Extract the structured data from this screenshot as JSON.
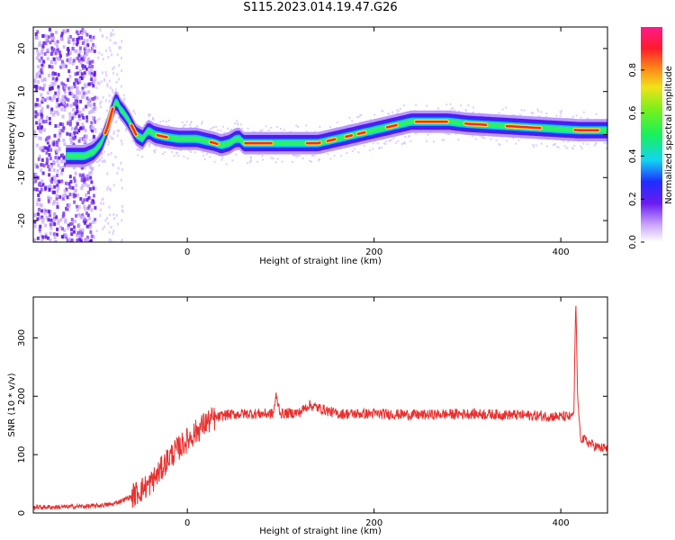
{
  "title": "S115.2023.014.19.47.G26",
  "colors": {
    "snr_line": "#e8312f",
    "axis": "#000000",
    "background": "#ffffff"
  },
  "chart_data": [
    {
      "type": "heatmap",
      "title": "",
      "xlabel": "Height of straight line (km)",
      "ylabel": "Frequency (Hz)",
      "xlim": [
        -165,
        450
      ],
      "ylim": [
        -25,
        25
      ],
      "x_ticks": [
        0,
        200,
        400
      ],
      "y_ticks": [
        -20,
        -10,
        0,
        10,
        20
      ],
      "colorbar": {
        "label": "Normalized spectral amplitude",
        "range": [
          0,
          1
        ],
        "ticks": [
          "0.0",
          "0.2",
          "0.4",
          "0.6",
          "0.8"
        ],
        "colormap": "rainbow (purple-blue-cyan-green-yellow-red-magenta)"
      },
      "ridge": {
        "x": [
          -150,
          -130,
          -110,
          -100,
          -92,
          -85,
          -80,
          -76,
          -72,
          -68,
          -62,
          -55,
          -48,
          -42,
          -35,
          -25,
          -10,
          10,
          30,
          36,
          45,
          52,
          56,
          60,
          70,
          100,
          140,
          160,
          180,
          200,
          220,
          240,
          260,
          280,
          300,
          340,
          380,
          420,
          450
        ],
        "y": [
          -5,
          -5,
          -5,
          -4,
          -2,
          2,
          6,
          8,
          6,
          5,
          3,
          0,
          -1,
          1,
          0,
          -0.5,
          -1,
          -1,
          -2,
          -2.5,
          -2,
          -1,
          -1,
          -2,
          -2,
          -2,
          -2,
          -1,
          0,
          1,
          2,
          3,
          3,
          3,
          2.5,
          2,
          1.5,
          1,
          1
        ]
      },
      "noise_region_x": [
        -165,
        -100
      ]
    },
    {
      "type": "line",
      "title": "",
      "xlabel": "Height of straight line (km)",
      "ylabel": "SNR (10 * v/v)",
      "xlim": [
        -165,
        450
      ],
      "ylim": [
        0,
        370
      ],
      "x_ticks": [
        0,
        200,
        400
      ],
      "y_ticks": [
        0,
        100,
        200,
        300
      ],
      "series": [
        {
          "x": [
            -165,
            -140,
            -120,
            -100,
            -80,
            -60,
            -40,
            -30,
            -20,
            -10,
            0,
            10,
            20,
            30,
            40,
            60,
            80,
            92,
            95,
            100,
            120,
            130,
            160,
            200,
            250,
            300,
            350,
            400,
            410,
            414,
            416,
            418,
            421,
            430,
            440,
            450
          ],
          "y": [
            10,
            10,
            11,
            12,
            15,
            28,
            50,
            70,
            95,
            110,
            125,
            140,
            155,
            162,
            168,
            170,
            170,
            170,
            200,
            170,
            172,
            185,
            170,
            170,
            168,
            170,
            168,
            165,
            165,
            170,
            370,
            200,
            130,
            120,
            112,
            110
          ]
        }
      ]
    }
  ]
}
